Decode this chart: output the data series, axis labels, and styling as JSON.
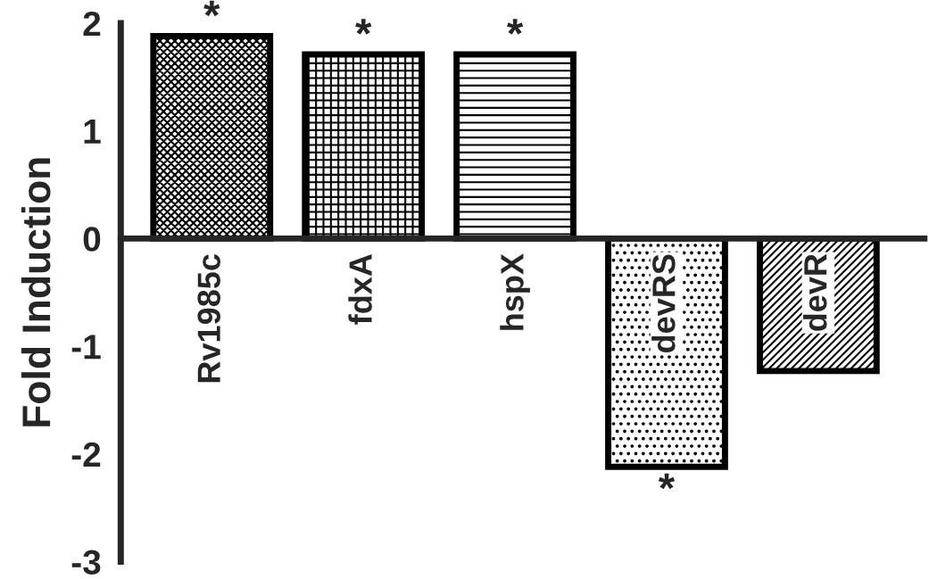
{
  "chart_data": {
    "type": "bar",
    "ylabel": "Fold Induction",
    "categories": [
      "Rv1985c",
      "fdxA",
      "hspX",
      "devRS",
      "devR"
    ],
    "values": [
      1.88,
      1.71,
      1.71,
      -2.12,
      -1.23
    ],
    "color": "#000000",
    "ylim": [
      -3,
      2
    ],
    "yticks": [
      -3,
      -2,
      -1,
      0,
      1,
      2
    ],
    "grid": false,
    "legend": false,
    "annotations": [
      "*",
      "*",
      "*",
      "*"
    ]
  }
}
